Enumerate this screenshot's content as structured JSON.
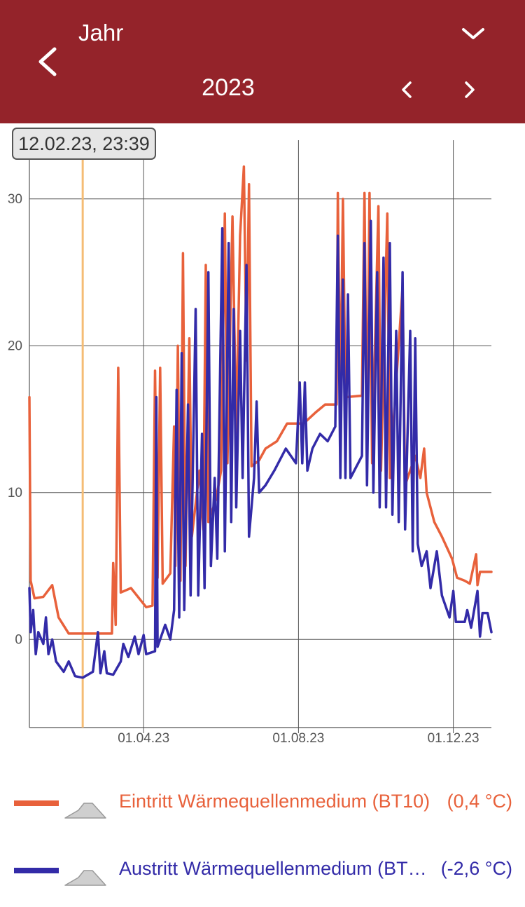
{
  "header": {
    "title": "Jahr",
    "year": "2023",
    "icons": [
      "chevron-left-icon",
      "chevron-down-icon",
      "chevron-left-icon",
      "chevron-right-icon"
    ]
  },
  "tooltip": {
    "text": "12.02.23, 23:39"
  },
  "legend": [
    {
      "label": "Eintritt Wärmequellenmedium (BT10)",
      "value": "(0,4 °C)",
      "color": "#e8613b"
    },
    {
      "label": "Austritt Wärmequellenmedium (BT…",
      "value": "(-2,6 °C)",
      "color": "#332ba8"
    }
  ],
  "chart_data": {
    "type": "line",
    "xlim": [
      "2023-01-01",
      "2023-12-31"
    ],
    "ylim": [
      -6,
      34
    ],
    "x_ticks": [
      {
        "date": "2023-04-01",
        "label": "01.04.23"
      },
      {
        "date": "2023-08-01",
        "label": "01.08.23"
      },
      {
        "date": "2023-12-01",
        "label": "01.12.23"
      }
    ],
    "y_ticks": [
      0,
      10,
      20,
      30
    ],
    "grid": true,
    "cursor_date": "2023-02-12",
    "cursor_color": "#f5bc75",
    "legend_position": "bottom",
    "series": [
      {
        "name": "Eintritt Wärmequellenmedium (BT10)",
        "color": "#e8613b",
        "points": [
          [
            "2023-01-01",
            16.5
          ],
          [
            "2023-01-02",
            4.0
          ],
          [
            "2023-01-05",
            2.8
          ],
          [
            "2023-01-12",
            2.9
          ],
          [
            "2023-01-19",
            3.7
          ],
          [
            "2023-01-24",
            1.5
          ],
          [
            "2023-02-01",
            0.4
          ],
          [
            "2023-02-12",
            0.4
          ],
          [
            "2023-02-28",
            0.4
          ],
          [
            "2023-03-07",
            0.4
          ],
          [
            "2023-03-08",
            5.2
          ],
          [
            "2023-03-10",
            1.0
          ],
          [
            "2023-03-12",
            18.5
          ],
          [
            "2023-03-14",
            3.2
          ],
          [
            "2023-03-22",
            3.5
          ],
          [
            "2023-04-03",
            2.2
          ],
          [
            "2023-04-08",
            2.3
          ],
          [
            "2023-04-10",
            18.3
          ],
          [
            "2023-04-12",
            4.2
          ],
          [
            "2023-04-14",
            18.5
          ],
          [
            "2023-04-16",
            3.8
          ],
          [
            "2023-04-22",
            4.5
          ],
          [
            "2023-04-25",
            14.5
          ],
          [
            "2023-04-26",
            5.0
          ],
          [
            "2023-04-28",
            20.0
          ],
          [
            "2023-04-30",
            4.0
          ],
          [
            "2023-05-02",
            26.3
          ],
          [
            "2023-05-04",
            5.0
          ],
          [
            "2023-05-07",
            20.5
          ],
          [
            "2023-05-09",
            7.0
          ],
          [
            "2023-05-15",
            11.5
          ],
          [
            "2023-05-18",
            7.5
          ],
          [
            "2023-05-20",
            25.5
          ],
          [
            "2023-05-22",
            8.0
          ],
          [
            "2023-05-28",
            9.5
          ],
          [
            "2023-06-01",
            11.5
          ],
          [
            "2023-06-04",
            29.0
          ],
          [
            "2023-06-06",
            12.0
          ],
          [
            "2023-06-10",
            28.8
          ],
          [
            "2023-06-13",
            14.0
          ],
          [
            "2023-06-16",
            27.5
          ],
          [
            "2023-06-19",
            32.2
          ],
          [
            "2023-06-21",
            19.0
          ],
          [
            "2023-06-23",
            31.0
          ],
          [
            "2023-06-25",
            11.8
          ],
          [
            "2023-07-01",
            12.2
          ],
          [
            "2023-07-06",
            13.0
          ],
          [
            "2023-07-15",
            13.5
          ],
          [
            "2023-07-23",
            14.7
          ],
          [
            "2023-08-05",
            14.7
          ],
          [
            "2023-08-15",
            15.5
          ],
          [
            "2023-08-22",
            16.0
          ],
          [
            "2023-08-31",
            16.0
          ],
          [
            "2023-09-01",
            30.4
          ],
          [
            "2023-09-03",
            16.0
          ],
          [
            "2023-09-05",
            30.0
          ],
          [
            "2023-09-07",
            16.5
          ],
          [
            "2023-09-20",
            16.6
          ],
          [
            "2023-09-22",
            30.4
          ],
          [
            "2023-09-24",
            13.0
          ],
          [
            "2023-09-26",
            30.4
          ],
          [
            "2023-09-28",
            12.0
          ],
          [
            "2023-10-03",
            29.5
          ],
          [
            "2023-10-05",
            11.5
          ],
          [
            "2023-10-10",
            29.0
          ],
          [
            "2023-10-12",
            11.0
          ],
          [
            "2023-10-22",
            24.0
          ],
          [
            "2023-10-24",
            10.5
          ],
          [
            "2023-11-01",
            12.5
          ],
          [
            "2023-11-05",
            11.0
          ],
          [
            "2023-11-08",
            13.0
          ],
          [
            "2023-11-10",
            10.0
          ],
          [
            "2023-11-16",
            8.0
          ],
          [
            "2023-11-22",
            7.0
          ],
          [
            "2023-11-30",
            5.5
          ],
          [
            "2023-12-04",
            4.2
          ],
          [
            "2023-12-10",
            4.0
          ],
          [
            "2023-12-14",
            3.8
          ],
          [
            "2023-12-19",
            5.8
          ],
          [
            "2023-12-20",
            3.7
          ],
          [
            "2023-12-22",
            4.6
          ],
          [
            "2023-12-31",
            4.6
          ]
        ]
      },
      {
        "name": "Austritt Wärmequellenmedium (BT…",
        "color": "#332ba8",
        "points": [
          [
            "2023-01-01",
            3.5
          ],
          [
            "2023-01-02",
            0.5
          ],
          [
            "2023-01-04",
            2.0
          ],
          [
            "2023-01-06",
            -1.0
          ],
          [
            "2023-01-08",
            0.5
          ],
          [
            "2023-01-12",
            -0.3
          ],
          [
            "2023-01-14",
            1.5
          ],
          [
            "2023-01-16",
            -1.0
          ],
          [
            "2023-01-19",
            0.0
          ],
          [
            "2023-01-22",
            -1.5
          ],
          [
            "2023-01-28",
            -2.2
          ],
          [
            "2023-02-01",
            -1.5
          ],
          [
            "2023-02-06",
            -2.5
          ],
          [
            "2023-02-12",
            -2.6
          ],
          [
            "2023-02-20",
            -2.2
          ],
          [
            "2023-02-24",
            0.5
          ],
          [
            "2023-02-26",
            -2.3
          ],
          [
            "2023-03-01",
            -0.8
          ],
          [
            "2023-03-03",
            -2.3
          ],
          [
            "2023-03-08",
            -2.4
          ],
          [
            "2023-03-14",
            -1.5
          ],
          [
            "2023-03-16",
            -0.3
          ],
          [
            "2023-03-20",
            -1.2
          ],
          [
            "2023-03-25",
            0.2
          ],
          [
            "2023-03-28",
            -1.0
          ],
          [
            "2023-04-01",
            0.3
          ],
          [
            "2023-04-03",
            -1.0
          ],
          [
            "2023-04-10",
            -0.8
          ],
          [
            "2023-04-11",
            16.5
          ],
          [
            "2023-04-12",
            -0.5
          ],
          [
            "2023-04-18",
            1.0
          ],
          [
            "2023-04-22",
            0.0
          ],
          [
            "2023-04-25",
            2.0
          ],
          [
            "2023-04-27",
            17.0
          ],
          [
            "2023-04-29",
            1.5
          ],
          [
            "2023-05-01",
            19.5
          ],
          [
            "2023-05-03",
            2.0
          ],
          [
            "2023-05-06",
            16.0
          ],
          [
            "2023-05-08",
            3.0
          ],
          [
            "2023-05-12",
            22.5
          ],
          [
            "2023-05-14",
            3.0
          ],
          [
            "2023-05-17",
            14.0
          ],
          [
            "2023-05-19",
            3.5
          ],
          [
            "2023-05-22",
            25.0
          ],
          [
            "2023-05-24",
            5.0
          ],
          [
            "2023-05-27",
            11.0
          ],
          [
            "2023-05-29",
            5.5
          ],
          [
            "2023-06-02",
            28.0
          ],
          [
            "2023-06-04",
            6.0
          ],
          [
            "2023-06-07",
            27.0
          ],
          [
            "2023-06-09",
            8.0
          ],
          [
            "2023-06-11",
            22.5
          ],
          [
            "2023-06-13",
            9.0
          ],
          [
            "2023-06-16",
            21.0
          ],
          [
            "2023-06-18",
            11.0
          ],
          [
            "2023-06-21",
            25.5
          ],
          [
            "2023-06-23",
            7.0
          ],
          [
            "2023-06-27",
            11.0
          ],
          [
            "2023-06-29",
            16.2
          ],
          [
            "2023-07-01",
            10.0
          ],
          [
            "2023-07-06",
            10.5
          ],
          [
            "2023-07-13",
            11.5
          ],
          [
            "2023-07-22",
            13.0
          ],
          [
            "2023-07-30",
            12.0
          ],
          [
            "2023-08-02",
            17.5
          ],
          [
            "2023-08-04",
            12.0
          ],
          [
            "2023-08-06",
            17.5
          ],
          [
            "2023-08-08",
            11.5
          ],
          [
            "2023-08-12",
            13.0
          ],
          [
            "2023-08-18",
            14.0
          ],
          [
            "2023-08-24",
            13.5
          ],
          [
            "2023-08-30",
            14.5
          ],
          [
            "2023-09-01",
            27.5
          ],
          [
            "2023-09-03",
            11.0
          ],
          [
            "2023-09-05",
            24.5
          ],
          [
            "2023-09-07",
            11.0
          ],
          [
            "2023-09-09",
            23.5
          ],
          [
            "2023-09-11",
            11.0
          ],
          [
            "2023-09-20",
            12.5
          ],
          [
            "2023-09-22",
            27.0
          ],
          [
            "2023-09-24",
            10.5
          ],
          [
            "2023-09-27",
            28.5
          ],
          [
            "2023-09-29",
            10.0
          ],
          [
            "2023-10-02",
            25.0
          ],
          [
            "2023-10-04",
            9.0
          ],
          [
            "2023-10-07",
            26.0
          ],
          [
            "2023-10-09",
            9.0
          ],
          [
            "2023-10-12",
            27.0
          ],
          [
            "2023-10-14",
            8.5
          ],
          [
            "2023-10-17",
            21.0
          ],
          [
            "2023-10-19",
            8.0
          ],
          [
            "2023-10-22",
            25.0
          ],
          [
            "2023-10-24",
            7.5
          ],
          [
            "2023-10-28",
            21.0
          ],
          [
            "2023-10-30",
            6.0
          ],
          [
            "2023-11-01",
            20.5
          ],
          [
            "2023-11-03",
            6.5
          ],
          [
            "2023-11-06",
            5.0
          ],
          [
            "2023-11-10",
            6.0
          ],
          [
            "2023-11-13",
            3.5
          ],
          [
            "2023-11-18",
            6.0
          ],
          [
            "2023-11-22",
            3.0
          ],
          [
            "2023-11-28",
            1.5
          ],
          [
            "2023-12-01",
            3.3
          ],
          [
            "2023-12-03",
            1.2
          ],
          [
            "2023-12-10",
            1.2
          ],
          [
            "2023-12-12",
            2.0
          ],
          [
            "2023-12-15",
            0.8
          ],
          [
            "2023-12-20",
            3.3
          ],
          [
            "2023-12-22",
            0.2
          ],
          [
            "2023-12-24",
            1.8
          ],
          [
            "2023-12-28",
            1.8
          ],
          [
            "2023-12-31",
            0.5
          ]
        ]
      }
    ]
  }
}
